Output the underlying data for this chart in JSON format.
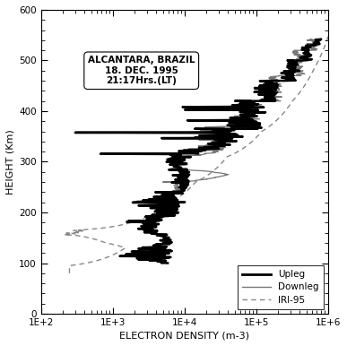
{
  "title_box": "ALCANTARA, BRAZIL\n18. DEC. 1995\n21:17Hrs.(LT)",
  "xlabel": "ELECTRON DENSITY (m-3)",
  "ylabel": "HEIGHT (Km)",
  "ylim": [
    0,
    600
  ],
  "yticks": [
    0,
    100,
    200,
    300,
    400,
    500,
    600
  ],
  "xtick_labels": [
    "1E+2",
    "1E+3",
    "1E+4",
    "1E+5",
    "1E+6"
  ],
  "upleg_color": "#000000",
  "downleg_color": "#777777",
  "iri_color": "#888888",
  "background": "#ffffff",
  "upleg_lw": 1.8,
  "downleg_lw": 0.9,
  "iri_lw": 1.0
}
